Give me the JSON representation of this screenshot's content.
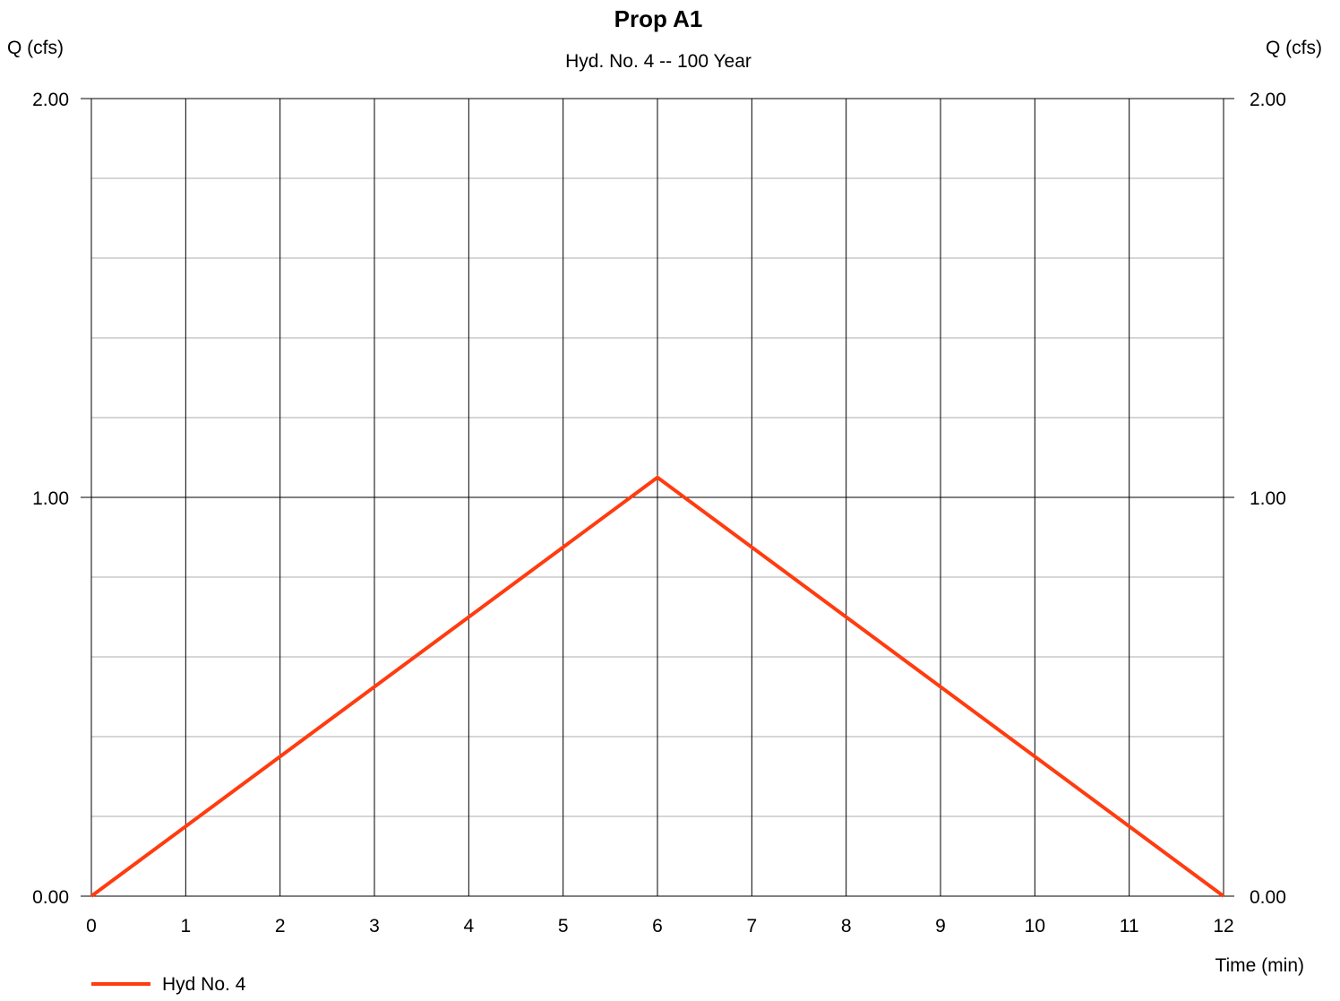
{
  "chart_data": {
    "type": "line",
    "title": "Prop A1",
    "subtitle": "Hyd. No. 4 -- 100 Year",
    "ylabel_left": "Q (cfs)",
    "ylabel_right": "Q (cfs)",
    "xlabel": "Time (min)",
    "xlim": [
      0,
      12
    ],
    "ylim": [
      0,
      2
    ],
    "x_ticks": [
      0,
      1,
      2,
      3,
      4,
      5,
      6,
      7,
      8,
      9,
      10,
      11,
      12
    ],
    "x_tick_labels": [
      "0",
      "1",
      "2",
      "3",
      "4",
      "5",
      "6",
      "7",
      "8",
      "9",
      "10",
      "11",
      "12"
    ],
    "y_ticks": [
      0,
      1,
      2
    ],
    "y_tick_labels": [
      "0.00",
      "1.00",
      "2.00"
    ],
    "y_minor_step": 0.2,
    "grid": true,
    "legend_position": "bottom-left",
    "series": [
      {
        "name": "Hyd No. 4",
        "color": "#ff3c10",
        "x": [
          0,
          6,
          12
        ],
        "y": [
          0,
          1.05,
          0
        ]
      }
    ]
  }
}
